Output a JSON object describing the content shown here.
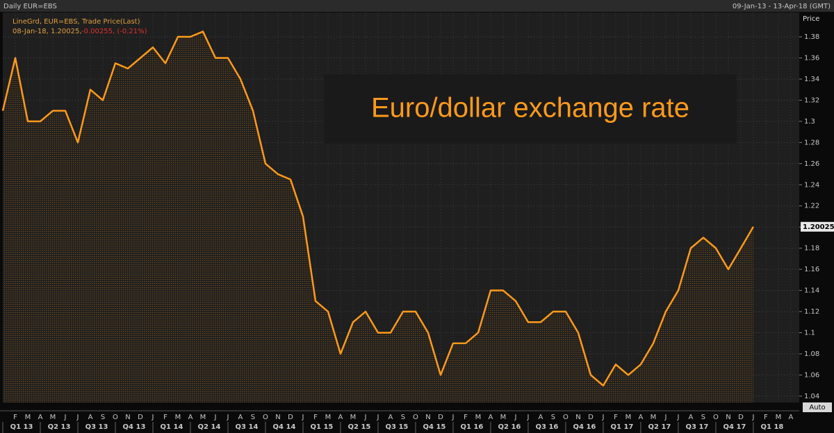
{
  "header": {
    "left": "Daily EUR=EBS",
    "right": "09-Jan-13 - 13-Apr-18 (GMT)"
  },
  "legend": {
    "line1": "LineGrd, EUR=EBS, Trade Price(Last)",
    "line2_date": "08-Jan-18, 1.20025,",
    "line2_change": "-0.00255, (-0.21%)"
  },
  "button": "Auto",
  "chart_data": {
    "type": "line",
    "annotation": "Euro/dollar exchange rate",
    "y_axis_label": "Price",
    "categories": [
      null,
      "F",
      "M",
      "A",
      "M",
      "J",
      "J",
      "A",
      "S",
      "O",
      "N",
      "D",
      "J",
      "F",
      "M",
      "A",
      "M",
      "J",
      "J",
      "A",
      "S",
      "O",
      "N",
      "D",
      "J",
      "F",
      "M",
      "A",
      "M",
      "J",
      "J",
      "A",
      "S",
      "O",
      "N",
      "D",
      "J",
      "F",
      "M",
      "A",
      "M",
      "J",
      "J",
      "A",
      "S",
      "O",
      "N",
      "D",
      "J",
      "F",
      "M",
      "A",
      "M",
      "J",
      "J",
      "A",
      "S",
      "O",
      "N",
      "D",
      "J",
      "F",
      "M",
      "A"
    ],
    "quarters": [
      "Q1 13",
      "Q2 13",
      "Q3 13",
      "Q4 13",
      "Q1 14",
      "Q2 14",
      "Q3 14",
      "Q4 14",
      "Q1 15",
      "Q2 15",
      "Q3 15",
      "Q4 15",
      "Q1 16",
      "Q2 16",
      "Q3 16",
      "Q4 16",
      "Q1 17",
      "Q2 17",
      "Q3 17",
      "Q4 17",
      "Q1 18"
    ],
    "series": [
      {
        "name": "EUR=EBS",
        "color": "#ff9a1a",
        "values": [
          1.31,
          1.36,
          1.3,
          1.3,
          1.31,
          1.31,
          1.28,
          1.33,
          1.32,
          1.355,
          1.35,
          1.36,
          1.37,
          1.355,
          1.38,
          1.38,
          1.385,
          1.36,
          1.36,
          1.34,
          1.31,
          1.26,
          1.25,
          1.245,
          1.21,
          1.13,
          1.12,
          1.08,
          1.11,
          1.12,
          1.1,
          1.1,
          1.12,
          1.12,
          1.1,
          1.06,
          1.09,
          1.09,
          1.1,
          1.14,
          1.14,
          1.13,
          1.11,
          1.11,
          1.12,
          1.12,
          1.1,
          1.06,
          1.05,
          1.07,
          1.06,
          1.07,
          1.09,
          1.12,
          1.14,
          1.18,
          1.19,
          1.18,
          1.16,
          1.18,
          1.20025,
          null,
          null,
          null
        ]
      }
    ],
    "ylim": [
      1.034,
      1.403
    ],
    "yticks": [
      1.04,
      1.06,
      1.08,
      1.1,
      1.12,
      1.14,
      1.16,
      1.18,
      1.2,
      1.22,
      1.24,
      1.26,
      1.28,
      1.3,
      1.32,
      1.34,
      1.36,
      1.38
    ],
    "grid": true
  }
}
